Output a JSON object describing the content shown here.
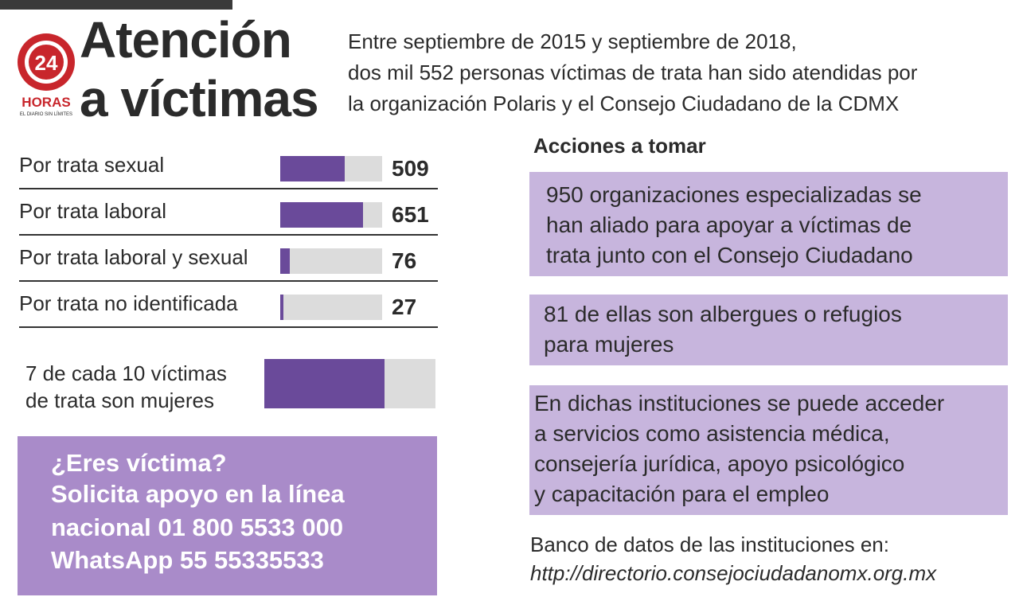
{
  "logo": {
    "number": "24",
    "name": "HORAS",
    "tagline": "EL DIARIO SIN LÍMITES"
  },
  "title": {
    "line1": "Atención",
    "line2": "a víctimas"
  },
  "intro": [
    "Entre septiembre de 2015 y septiembre de 2018,",
    "dos mil 552 personas víctimas de trata han sido atendidas por",
    "la organización Polaris y el Consejo Ciudadano de la CDMX"
  ],
  "chart_data": [
    {
      "type": "bar",
      "categories": [
        "Por trata sexual",
        "Por trata laboral",
        "Por trata laboral y sexual",
        "Por trata no identificada"
      ],
      "values": [
        509,
        651,
        76,
        27
      ],
      "value_labels": [
        "509",
        "651",
        "76",
        "27"
      ],
      "xlim": [
        0,
        800
      ]
    },
    {
      "type": "bar",
      "text": [
        "7 de cada 10 víctimas",
        "de trata son mujeres"
      ],
      "value": 7,
      "total": 10
    }
  ],
  "help": [
    "¿Eres víctima?",
    "Solicita apoyo en la línea",
    "nacional 01 800 5533 000",
    "WhatsApp 55 55335533"
  ],
  "actions": {
    "title": "Acciones a tomar",
    "box1": [
      "950 organizaciones especializadas se",
      "han aliado para apoyar a víctimas de",
      "trata junto con el Consejo Ciudadano"
    ],
    "box2": [
      "81 de ellas son albergues o refugios",
      "para mujeres"
    ],
    "box3": [
      "En dichas instituciones se puede acceder",
      "a servicios como asistencia médica,",
      "consejería jurídica, apoyo psicológico",
      "y capacitación para el empleo"
    ]
  },
  "bank": {
    "line": "Banco de datos de las instituciones en:",
    "url": "http://directorio.consejociudadanomx.org.mx"
  },
  "colors": {
    "accent": "#6a4a9a",
    "box": "#c7b5dd",
    "help_bg": "#a98bc9",
    "track": "#dcdcdc",
    "logo_red": "#c8262c"
  }
}
